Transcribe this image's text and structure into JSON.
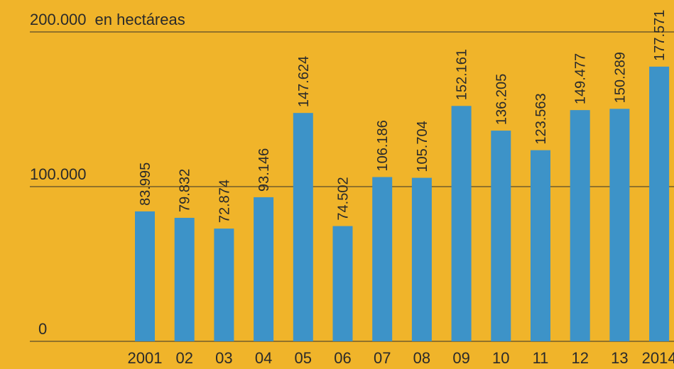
{
  "chart_data": {
    "type": "bar",
    "unit_label": "en hectáreas",
    "categories": [
      "2001",
      "02",
      "03",
      "04",
      "05",
      "06",
      "07",
      "08",
      "09",
      "10",
      "11",
      "12",
      "13",
      "2014"
    ],
    "values": [
      83995,
      79832,
      72874,
      93146,
      147624,
      74502,
      106186,
      105704,
      152161,
      136205,
      123563,
      149477,
      150289,
      177571
    ],
    "value_labels": [
      "83.995",
      "79.832",
      "72.874",
      "93.146",
      "147.624",
      "74.502",
      "106.186",
      "105.704",
      "152.161",
      "136.205",
      "123.563",
      "149.477",
      "150.289",
      "177.571"
    ],
    "color": "#3d93c8",
    "background": "#f0b42a",
    "ylim": [
      0,
      200000
    ],
    "yticks": [
      0,
      {
        "value": 100000,
        "label": "100.000"
      },
      {
        "value": 200000,
        "label": "200.000"
      }
    ],
    "grid": true
  }
}
